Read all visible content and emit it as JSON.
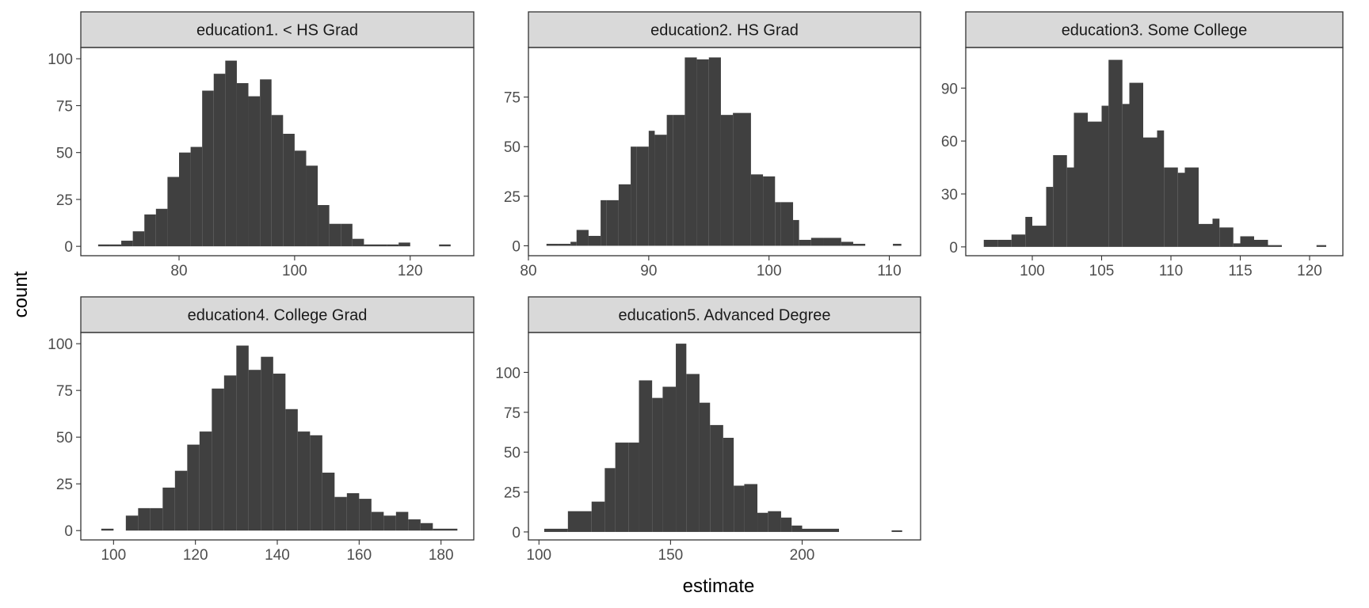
{
  "chart_data": {
    "type": "bar",
    "layout": "facet-wrap histogram",
    "xlabel": "estimate",
    "ylabel": "count",
    "bar_color": "#404040",
    "strip_fill": "#d9d9d9",
    "panel_border": "#333333",
    "panels": [
      {
        "title": "education1. < HS Grad",
        "xlim": [
          63,
          131
        ],
        "ylim": [
          -5,
          106
        ],
        "xticks": [
          80,
          100,
          120
        ],
        "yticks": [
          0,
          25,
          50,
          75,
          100
        ],
        "bins": [
          {
            "x0": 66.0,
            "x1": 68.0,
            "count": 1
          },
          {
            "x0": 68.0,
            "x1": 70.0,
            "count": 1
          },
          {
            "x0": 70.0,
            "x1": 72.0,
            "count": 3
          },
          {
            "x0": 72.0,
            "x1": 74.0,
            "count": 8
          },
          {
            "x0": 74.0,
            "x1": 76.0,
            "count": 17
          },
          {
            "x0": 76.0,
            "x1": 78.0,
            "count": 20
          },
          {
            "x0": 78.0,
            "x1": 80.0,
            "count": 37
          },
          {
            "x0": 80.0,
            "x1": 82.0,
            "count": 50
          },
          {
            "x0": 82.0,
            "x1": 84.0,
            "count": 53
          },
          {
            "x0": 84.0,
            "x1": 86.0,
            "count": 83
          },
          {
            "x0": 86.0,
            "x1": 88.0,
            "count": 92
          },
          {
            "x0": 88.0,
            "x1": 90.0,
            "count": 99
          },
          {
            "x0": 90.0,
            "x1": 92.0,
            "count": 87
          },
          {
            "x0": 92.0,
            "x1": 94.0,
            "count": 80
          },
          {
            "x0": 94.0,
            "x1": 96.0,
            "count": 89
          },
          {
            "x0": 96.0,
            "x1": 98.0,
            "count": 70
          },
          {
            "x0": 98.0,
            "x1": 100.0,
            "count": 60
          },
          {
            "x0": 100.0,
            "x1": 102.0,
            "count": 51
          },
          {
            "x0": 102.0,
            "x1": 104.0,
            "count": 43
          },
          {
            "x0": 104.0,
            "x1": 106.0,
            "count": 22
          },
          {
            "x0": 106.0,
            "x1": 108.0,
            "count": 12
          },
          {
            "x0": 108.0,
            "x1": 110.0,
            "count": 12
          },
          {
            "x0": 110.0,
            "x1": 112.0,
            "count": 4
          },
          {
            "x0": 112.0,
            "x1": 114.0,
            "count": 1
          },
          {
            "x0": 114.0,
            "x1": 116.0,
            "count": 1
          },
          {
            "x0": 116.0,
            "x1": 118.0,
            "count": 1
          },
          {
            "x0": 118.0,
            "x1": 120.0,
            "count": 2
          },
          {
            "x0": 125.0,
            "x1": 127.0,
            "count": 1
          }
        ]
      },
      {
        "title": "education2. HS Grad",
        "xlim": [
          80,
          112.6
        ],
        "ylim": [
          -5,
          100
        ],
        "xticks": [
          80,
          90,
          100,
          110
        ],
        "yticks": [
          0,
          25,
          50,
          75
        ],
        "bins": [
          {
            "x0": 81.5,
            "x1": 82.5,
            "count": 1
          },
          {
            "x0": 82.5,
            "x1": 83.5,
            "count": 1
          },
          {
            "x0": 83.5,
            "x1": 84.0,
            "count": 2
          },
          {
            "x0": 84.0,
            "x1": 85.0,
            "count": 8
          },
          {
            "x0": 85.0,
            "x1": 86.0,
            "count": 5
          },
          {
            "x0": 86.0,
            "x1": 86.5,
            "count": 23
          },
          {
            "x0": 86.5,
            "x1": 87.5,
            "count": 23
          },
          {
            "x0": 87.5,
            "x1": 88.5,
            "count": 31
          },
          {
            "x0": 88.5,
            "x1": 89.0,
            "count": 50
          },
          {
            "x0": 89.0,
            "x1": 90.0,
            "count": 50
          },
          {
            "x0": 90.0,
            "x1": 90.5,
            "count": 58
          },
          {
            "x0": 90.5,
            "x1": 91.5,
            "count": 56
          },
          {
            "x0": 91.5,
            "x1": 92.0,
            "count": 66
          },
          {
            "x0": 92.0,
            "x1": 93.0,
            "count": 66
          },
          {
            "x0": 93.0,
            "x1": 94.0,
            "count": 95
          },
          {
            "x0": 94.0,
            "x1": 95.0,
            "count": 94
          },
          {
            "x0": 95.0,
            "x1": 96.0,
            "count": 95
          },
          {
            "x0": 96.0,
            "x1": 97.0,
            "count": 66
          },
          {
            "x0": 97.0,
            "x1": 98.5,
            "count": 67
          },
          {
            "x0": 98.5,
            "x1": 99.5,
            "count": 36
          },
          {
            "x0": 99.5,
            "x1": 100.5,
            "count": 35
          },
          {
            "x0": 100.5,
            "x1": 101.0,
            "count": 22
          },
          {
            "x0": 101.0,
            "x1": 102.0,
            "count": 22
          },
          {
            "x0": 102.0,
            "x1": 102.5,
            "count": 13
          },
          {
            "x0": 102.5,
            "x1": 103.5,
            "count": 3
          },
          {
            "x0": 103.5,
            "x1": 104.5,
            "count": 4
          },
          {
            "x0": 104.5,
            "x1": 106.0,
            "count": 4
          },
          {
            "x0": 106.0,
            "x1": 107.0,
            "count": 2
          },
          {
            "x0": 107.0,
            "x1": 108.0,
            "count": 1
          },
          {
            "x0": 110.3,
            "x1": 111.0,
            "count": 1
          }
        ]
      },
      {
        "title": "education3. Some College",
        "xlim": [
          95.2,
          122.4
        ],
        "ylim": [
          -5,
          113
        ],
        "xticks": [
          100,
          105,
          110,
          115,
          120
        ],
        "yticks": [
          0,
          30,
          60,
          90
        ],
        "bins": [
          {
            "x0": 96.5,
            "x1": 97.5,
            "count": 4
          },
          {
            "x0": 97.5,
            "x1": 98.5,
            "count": 4
          },
          {
            "x0": 98.5,
            "x1": 99.5,
            "count": 7
          },
          {
            "x0": 99.5,
            "x1": 100.0,
            "count": 17
          },
          {
            "x0": 100.0,
            "x1": 101.0,
            "count": 12
          },
          {
            "x0": 101.0,
            "x1": 101.5,
            "count": 34
          },
          {
            "x0": 101.5,
            "x1": 102.5,
            "count": 52
          },
          {
            "x0": 102.5,
            "x1": 103.0,
            "count": 45
          },
          {
            "x0": 103.0,
            "x1": 104.0,
            "count": 76
          },
          {
            "x0": 104.0,
            "x1": 105.0,
            "count": 71
          },
          {
            "x0": 105.0,
            "x1": 105.5,
            "count": 80
          },
          {
            "x0": 105.5,
            "x1": 106.5,
            "count": 106
          },
          {
            "x0": 106.5,
            "x1": 107.0,
            "count": 81
          },
          {
            "x0": 107.0,
            "x1": 108.0,
            "count": 93
          },
          {
            "x0": 108.0,
            "x1": 109.0,
            "count": 62
          },
          {
            "x0": 109.0,
            "x1": 109.5,
            "count": 66
          },
          {
            "x0": 109.5,
            "x1": 110.5,
            "count": 45
          },
          {
            "x0": 110.5,
            "x1": 111.0,
            "count": 42
          },
          {
            "x0": 111.0,
            "x1": 112.0,
            "count": 45
          },
          {
            "x0": 112.0,
            "x1": 113.0,
            "count": 13
          },
          {
            "x0": 113.0,
            "x1": 113.5,
            "count": 16
          },
          {
            "x0": 113.5,
            "x1": 114.5,
            "count": 11
          },
          {
            "x0": 114.5,
            "x1": 115.0,
            "count": 2
          },
          {
            "x0": 115.0,
            "x1": 116.0,
            "count": 6
          },
          {
            "x0": 116.0,
            "x1": 117.0,
            "count": 4
          },
          {
            "x0": 117.0,
            "x1": 118.0,
            "count": 1
          },
          {
            "x0": 120.5,
            "x1": 121.2,
            "count": 1
          }
        ]
      },
      {
        "title": "education4. College Grad",
        "xlim": [
          92,
          188
        ],
        "ylim": [
          -5,
          106
        ],
        "xticks": [
          100,
          120,
          140,
          160,
          180
        ],
        "yticks": [
          0,
          25,
          50,
          75,
          100
        ],
        "bins": [
          {
            "x0": 97.0,
            "x1": 100.0,
            "count": 1
          },
          {
            "x0": 103.0,
            "x1": 106.0,
            "count": 8
          },
          {
            "x0": 106.0,
            "x1": 109.0,
            "count": 12
          },
          {
            "x0": 109.0,
            "x1": 112.0,
            "count": 12
          },
          {
            "x0": 112.0,
            "x1": 115.0,
            "count": 23
          },
          {
            "x0": 115.0,
            "x1": 118.0,
            "count": 32
          },
          {
            "x0": 118.0,
            "x1": 121.0,
            "count": 46
          },
          {
            "x0": 121.0,
            "x1": 124.0,
            "count": 53
          },
          {
            "x0": 124.0,
            "x1": 127.0,
            "count": 76
          },
          {
            "x0": 127.0,
            "x1": 130.0,
            "count": 83
          },
          {
            "x0": 130.0,
            "x1": 133.0,
            "count": 99
          },
          {
            "x0": 133.0,
            "x1": 136.0,
            "count": 86
          },
          {
            "x0": 136.0,
            "x1": 139.0,
            "count": 93
          },
          {
            "x0": 139.0,
            "x1": 142.0,
            "count": 84
          },
          {
            "x0": 142.0,
            "x1": 145.0,
            "count": 65
          },
          {
            "x0": 145.0,
            "x1": 148.0,
            "count": 53
          },
          {
            "x0": 148.0,
            "x1": 151.0,
            "count": 51
          },
          {
            "x0": 151.0,
            "x1": 154.0,
            "count": 31
          },
          {
            "x0": 154.0,
            "x1": 157.0,
            "count": 18
          },
          {
            "x0": 157.0,
            "x1": 160.0,
            "count": 20
          },
          {
            "x0": 160.0,
            "x1": 163.0,
            "count": 17
          },
          {
            "x0": 163.0,
            "x1": 166.0,
            "count": 10
          },
          {
            "x0": 166.0,
            "x1": 169.0,
            "count": 8
          },
          {
            "x0": 169.0,
            "x1": 172.0,
            "count": 10
          },
          {
            "x0": 172.0,
            "x1": 175.0,
            "count": 6
          },
          {
            "x0": 175.0,
            "x1": 178.0,
            "count": 4
          },
          {
            "x0": 178.0,
            "x1": 184.0,
            "count": 1
          }
        ]
      },
      {
        "title": "education5. Advanced Degree",
        "xlim": [
          96,
          245
        ],
        "ylim": [
          -5,
          125
        ],
        "xticks": [
          100,
          150,
          200
        ],
        "yticks": [
          0,
          25,
          50,
          75,
          100
        ],
        "bins": [
          {
            "x0": 102.0,
            "x1": 111.0,
            "count": 2
          },
          {
            "x0": 111.0,
            "x1": 120.0,
            "count": 13
          },
          {
            "x0": 120.0,
            "x1": 125.0,
            "count": 19
          },
          {
            "x0": 125.0,
            "x1": 129.0,
            "count": 40
          },
          {
            "x0": 129.0,
            "x1": 134.0,
            "count": 56
          },
          {
            "x0": 134.0,
            "x1": 138.0,
            "count": 56
          },
          {
            "x0": 138.0,
            "x1": 143.0,
            "count": 95
          },
          {
            "x0": 143.0,
            "x1": 147.0,
            "count": 84
          },
          {
            "x0": 147.0,
            "x1": 152.0,
            "count": 91
          },
          {
            "x0": 152.0,
            "x1": 156.0,
            "count": 118
          },
          {
            "x0": 156.0,
            "x1": 161.0,
            "count": 99
          },
          {
            "x0": 161.0,
            "x1": 165.0,
            "count": 81
          },
          {
            "x0": 165.0,
            "x1": 170.0,
            "count": 67
          },
          {
            "x0": 170.0,
            "x1": 174.0,
            "count": 59
          },
          {
            "x0": 174.0,
            "x1": 178.0,
            "count": 29
          },
          {
            "x0": 178.0,
            "x1": 183.0,
            "count": 30
          },
          {
            "x0": 183.0,
            "x1": 187.0,
            "count": 12
          },
          {
            "x0": 187.0,
            "x1": 192.0,
            "count": 13
          },
          {
            "x0": 192.0,
            "x1": 196.0,
            "count": 9
          },
          {
            "x0": 196.0,
            "x1": 200.0,
            "count": 4
          },
          {
            "x0": 200.0,
            "x1": 214.0,
            "count": 2
          },
          {
            "x0": 234.0,
            "x1": 238.0,
            "count": 1
          }
        ]
      }
    ]
  }
}
